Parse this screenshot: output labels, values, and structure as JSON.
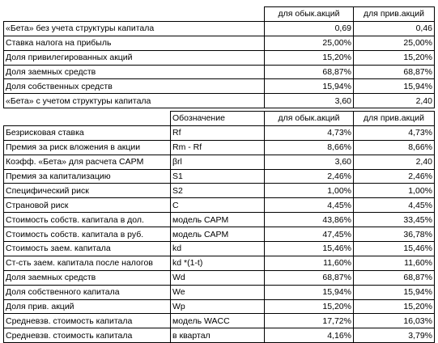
{
  "table1": {
    "headers": [
      "",
      "",
      "для обык.акций",
      "для прив.акций"
    ],
    "rows": [
      [
        "«Бета» без учета структуры капитала",
        "",
        "0,69",
        "0,46"
      ],
      [
        "Ставка налога на прибыль",
        "",
        "25,00%",
        "25,00%"
      ],
      [
        "Доля привилегированных акций",
        "",
        "15,20%",
        "15,20%"
      ],
      [
        "Доля заемных средств",
        "",
        "68,87%",
        "68,87%"
      ],
      [
        "Доля собственных средств",
        "",
        "15,94%",
        "15,94%"
      ],
      [
        "«Бета» с учетом структуры капитала",
        "",
        "3,60",
        "2,40"
      ]
    ]
  },
  "table2": {
    "headers": [
      "",
      "Обозначение",
      "для обык.акций",
      "для прив.акций"
    ],
    "rows": [
      [
        "Безрисковая ставка",
        "Rf",
        "4,73%",
        "4,73%"
      ],
      [
        "Премия за риск вложения в акции",
        "Rm - Rf",
        "8,66%",
        "8,66%"
      ],
      [
        "Коэфф. «Бета» для расчета CAPM",
        "βrl",
        "3,60",
        "2,40"
      ],
      [
        "Премия за капитализацию",
        "S1",
        "2,46%",
        "2,46%"
      ],
      [
        "Специфический риск",
        "S2",
        "1,00%",
        "1,00%"
      ],
      [
        "Страновой риск",
        "C",
        "4,45%",
        "4,45%"
      ],
      [
        "Стоимость собств. капитала в дол.",
        "модель CAPM",
        "43,86%",
        "33,45%"
      ],
      [
        "Стоимость собств. капитала в руб.",
        "модель CAPM",
        "47,45%",
        "36,78%"
      ],
      [
        "Стоимость заем. капитала",
        "kd",
        "15,46%",
        "15,46%"
      ],
      [
        "Ст-сть заем. капитала после налогов",
        "kd *(1-t)",
        "11,60%",
        "11,60%"
      ],
      [
        "Доля заемных средств",
        "Wd",
        "68,87%",
        "68,87%"
      ],
      [
        "Доля собственного капитала",
        "We",
        "15,94%",
        "15,94%"
      ],
      [
        "Доля прив. акций",
        "Wp",
        "15,20%",
        "15,20%"
      ],
      [
        "Средневзв. стоимость капитала",
        "модель WACC",
        "17,72%",
        "16,03%"
      ],
      [
        "Средневзв. стоимость капитала",
        "в квартал",
        "4,16%",
        "3,79%"
      ]
    ]
  }
}
